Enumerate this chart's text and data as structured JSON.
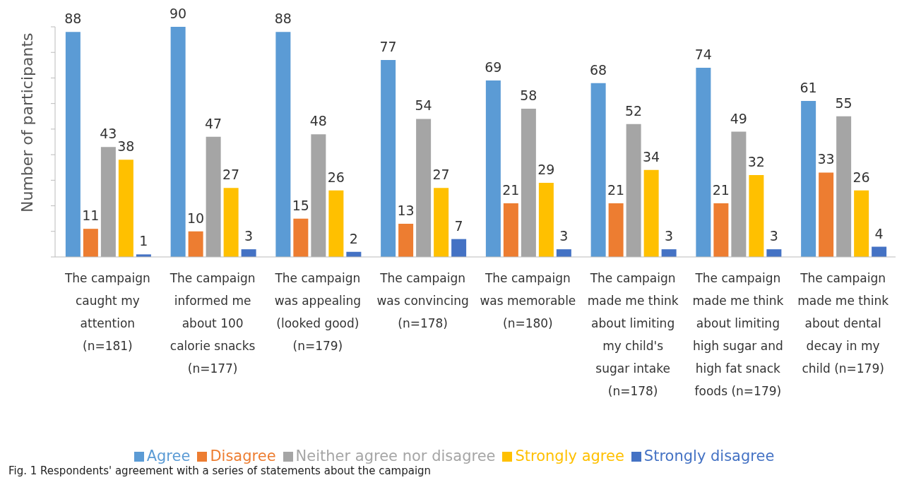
{
  "chart_data": {
    "type": "bar",
    "ylabel": "Number of participants",
    "categories": [
      "The campaign caught my attention (n=181)",
      "The campaign informed me about 100 calorie snacks (n=177)",
      "The campaign was appealing (looked good) (n=179)",
      "The campaign was convincing (n=178)",
      "The campaign was memorable (n=180)",
      "The campaign made me think about limiting my child's sugar intake (n=178)",
      "The campaign made me think about limiting high sugar and high fat snack foods (n=179)",
      "The campaign made me think about dental decay in my child (n=179)"
    ],
    "series": [
      {
        "name": "Agree",
        "color": "#5b9bd5",
        "values": [
          88,
          90,
          88,
          77,
          69,
          68,
          74,
          61
        ]
      },
      {
        "name": "Disagree",
        "color": "#ed7d31",
        "values": [
          11,
          10,
          15,
          13,
          21,
          21,
          21,
          33
        ]
      },
      {
        "name": "Neither agree nor disagree",
        "color": "#a5a5a5",
        "values": [
          43,
          47,
          48,
          54,
          58,
          52,
          49,
          55
        ]
      },
      {
        "name": "Strongly agree",
        "color": "#ffc000",
        "values": [
          38,
          27,
          26,
          27,
          29,
          34,
          32,
          26
        ]
      },
      {
        "name": "Strongly disagree",
        "color": "#4472c4",
        "values": [
          1,
          3,
          2,
          7,
          3,
          3,
          3,
          4
        ]
      }
    ],
    "ylim": [
      0,
      90
    ],
    "yticks": [
      {
        "value": 0,
        "label": null
      },
      {
        "value": 10,
        "label": null
      },
      {
        "value": 20,
        "label": null
      },
      {
        "value": 30,
        "label": null
      },
      {
        "value": 40,
        "label": null
      },
      {
        "value": 50,
        "label": null
      },
      {
        "value": 60,
        "label": null
      },
      {
        "value": 70,
        "label": null
      },
      {
        "value": 80,
        "label": null
      },
      {
        "value": 90,
        "label": null
      }
    ],
    "tick_labels": "x",
    "data_labels": true,
    "legend": "bottom",
    "grid": false,
    "annotations": [
      "Fig. 1 Respondents' agreement with a series of statements about the campaign"
    ]
  }
}
